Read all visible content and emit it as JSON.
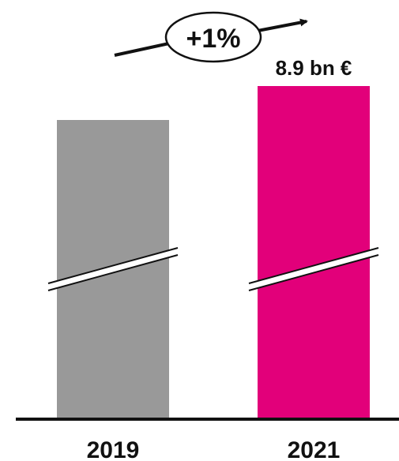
{
  "chart_data": {
    "type": "bar",
    "categories": [
      "2019",
      "2021"
    ],
    "values": [
      8.8,
      8.9
    ],
    "value_labels": [
      "",
      "8.9 bn €"
    ],
    "axis_break": true,
    "annotation": {
      "text": "+1%",
      "from": "2019",
      "to": "2021"
    },
    "title": "",
    "xlabel": "",
    "ylabel": "",
    "grid": false,
    "legend": "none",
    "colors": [
      "#999999",
      "#e2007a"
    ]
  }
}
